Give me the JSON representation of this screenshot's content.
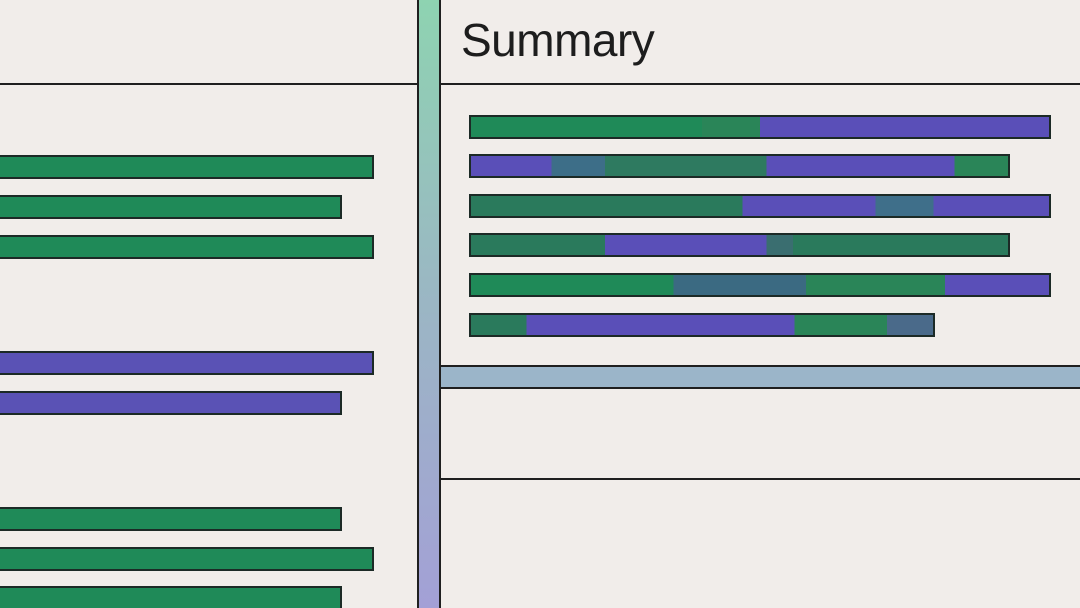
{
  "summary": {
    "title": "Summary",
    "rows": [
      {
        "fill": 1.0,
        "segments": [
          [
            "#1f8a58",
            0.4
          ],
          [
            "#2a8558",
            0.5
          ],
          [
            "#5a4fb8",
            0.6
          ],
          [
            "#5a4fb8",
            1.0
          ]
        ]
      },
      {
        "fill": 0.93,
        "segments": [
          [
            "#5a4fb8",
            0.15
          ],
          [
            "#3d6e88",
            0.25
          ],
          [
            "#2e7a60",
            0.55
          ],
          [
            "#5a4fb8",
            0.9
          ],
          [
            "#2a8558",
            1.0
          ]
        ]
      },
      {
        "fill": 1.0,
        "segments": [
          [
            "#2a7a5c",
            0.47
          ],
          [
            "#5a4fb8",
            0.7
          ],
          [
            "#3f6f8a",
            0.8
          ],
          [
            "#5a4fb8",
            1.0
          ]
        ]
      },
      {
        "fill": 0.93,
        "segments": [
          [
            "#2a7a5c",
            0.25
          ],
          [
            "#5a4fb8",
            0.55
          ],
          [
            "#3a6e70",
            0.6
          ],
          [
            "#2a7a5c",
            1.0
          ]
        ]
      },
      {
        "fill": 1.0,
        "segments": [
          [
            "#1f8a58",
            0.35
          ],
          [
            "#3b6a82",
            0.58
          ],
          [
            "#2a8558",
            0.82
          ],
          [
            "#5a4fb8",
            1.0
          ]
        ]
      },
      {
        "fill": 0.8,
        "segments": [
          [
            "#2a7a5c",
            0.12
          ],
          [
            "#5a4fb8",
            0.7
          ],
          [
            "#2a8558",
            0.9
          ],
          [
            "#4a6a8a",
            1.0
          ]
        ]
      }
    ]
  },
  "left_list": {
    "items": [
      {
        "fill": 0.95,
        "color": "#1f8a58"
      },
      {
        "fill": 0.87,
        "color": "#1f8a58"
      },
      {
        "fill": 0.95,
        "color": "#1f8a58"
      },
      {
        "fill": 0.95,
        "color": "#5a52b5"
      },
      {
        "fill": 0.87,
        "color": "#5a52b5"
      },
      {
        "fill": 0.87,
        "color": "#1f8a58"
      },
      {
        "fill": 0.95,
        "color": "#1f8a58"
      },
      {
        "fill": 0.87,
        "color": "#1f8a58"
      }
    ]
  },
  "colors": {
    "background": "#f1edea",
    "green": "#1f8a58",
    "purple": "#5a52b5",
    "divider_gradient_top": "#8ed3b1",
    "divider_gradient_bottom": "#a3a0d6",
    "divider_horizontal": "#9bb5c9"
  }
}
